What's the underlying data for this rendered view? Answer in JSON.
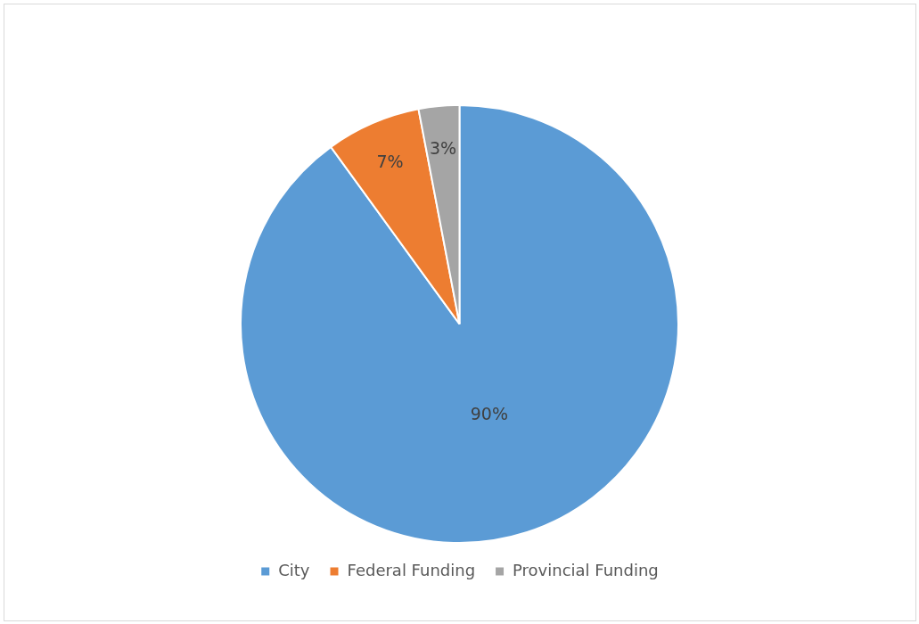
{
  "chart_data": {
    "type": "pie",
    "categories": [
      "City",
      "Federal Funding",
      "Provincial Funding"
    ],
    "values": [
      90,
      7,
      3
    ],
    "colors": [
      "#5b9bd5",
      "#ed7d31",
      "#a5a5a5"
    ],
    "value_labels": [
      "90%",
      "7%",
      "3%"
    ],
    "legend": "bottom"
  }
}
